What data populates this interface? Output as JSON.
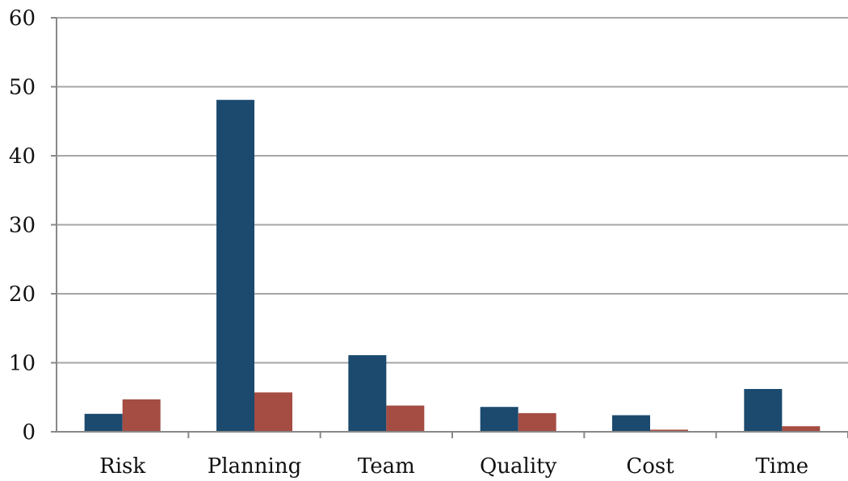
{
  "chart_data": {
    "type": "bar",
    "title": "",
    "xlabel": "",
    "ylabel": "",
    "categories": [
      "Risk",
      "Planning",
      "Team",
      "Quality",
      "Cost",
      "Time"
    ],
    "series": [
      {
        "values": [
          2.6,
          48.1,
          11.1,
          3.6,
          2.4,
          6.2
        ],
        "color": "#1b4a6e"
      },
      {
        "values": [
          4.7,
          5.7,
          3.8,
          2.7,
          0.3,
          0.8
        ],
        "color": "#a54c43"
      }
    ],
    "ylim": [
      0,
      60
    ],
    "yticks": [
      "0",
      "10",
      "20",
      "30",
      "40",
      "50",
      "60"
    ],
    "grid": true,
    "legend": "none",
    "gridline_color": "#a6a6a6",
    "axis_color": "#888888"
  }
}
